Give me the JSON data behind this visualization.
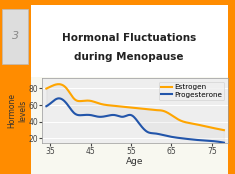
{
  "title_line1": "Hormonal Fluctuations",
  "title_line2": "during Menopause",
  "xlabel": "Age",
  "ylabel": "Hormone\nlevels",
  "xlim": [
    33,
    79
  ],
  "ylim": [
    15,
    92
  ],
  "xticks": [
    35,
    45,
    55,
    65,
    75
  ],
  "yticks": [
    20,
    40,
    60,
    80
  ],
  "estrogen_color": "#FFA500",
  "progesterone_color": "#2255AA",
  "legend_labels": [
    "Estrogen",
    "Progesterone"
  ],
  "bg_color": "#FFF5EE",
  "border_color": "#FF8C00",
  "title_color": "#333333",
  "axis_bg": "#FFF5EE",
  "plot_bg": "#EEEEEE"
}
